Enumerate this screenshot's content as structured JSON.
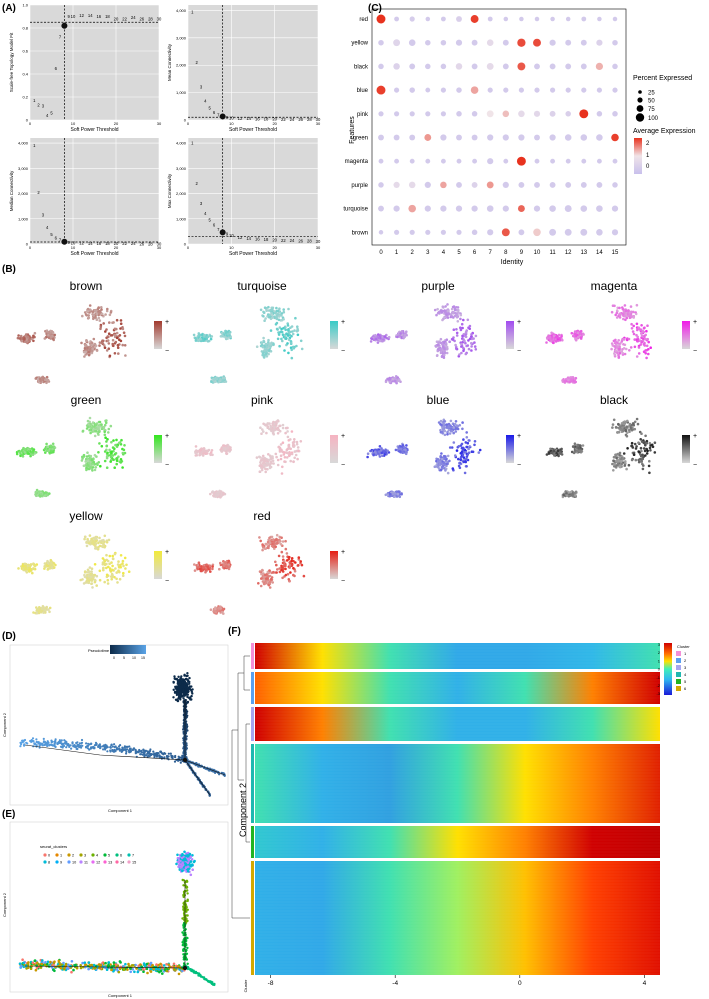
{
  "panel_labels": {
    "A": "(A)",
    "B": "(B)",
    "C": "(C)",
    "D": "(D)",
    "E": "(E)",
    "F": "(F)"
  },
  "colors": {
    "gray_bg": "#d9d9d9",
    "dot_low": "#c8c0ec",
    "dot_high": "#e8321e",
    "pseudotime_dark": "#0d2b4a",
    "pseudotime_light": "#5aa3e6",
    "heatmap_low": "#1d1de0",
    "heatmap_mid": "#32e0c4",
    "heatmap_high": "#d00000"
  },
  "panel_a": {
    "xlabel": "Soft Power Threshold",
    "ylabels": [
      "Scale-free Topology Model Fit",
      "Mean Connectivity",
      "Median Connectivity",
      "Max Connectivity"
    ],
    "powers": [
      1,
      2,
      3,
      4,
      5,
      6,
      7,
      8,
      9,
      10,
      12,
      14,
      16,
      18,
      20,
      22,
      24,
      26,
      28,
      30
    ],
    "chart_data": [
      {
        "type": "scatter",
        "title": "",
        "ylabel": "Scale-free Topology Model Fit",
        "xlabel": "Soft Power Threshold",
        "x": [
          1,
          2,
          3,
          4,
          5,
          6,
          7,
          8,
          9,
          10,
          12,
          14,
          16,
          18,
          20,
          22,
          24,
          26,
          28,
          30
        ],
        "y": [
          0.17,
          0.13,
          0.12,
          0.04,
          0.06,
          0.45,
          0.72,
          0.82,
          0.9,
          0.9,
          0.91,
          0.91,
          0.9,
          0.9,
          0.88,
          0.88,
          0.89,
          0.88,
          0.88,
          0.88
        ],
        "xlim": [
          0,
          30
        ],
        "ylim": [
          0,
          1.0
        ],
        "yticks": [
          "0",
          "0.2",
          "0.4",
          "0.6",
          "0.8",
          "1.0"
        ],
        "xticks": [
          "0",
          "10",
          "20",
          "30"
        ],
        "hline": 0.85,
        "vline": 8,
        "highlight_x": 8
      },
      {
        "type": "scatter",
        "title": "",
        "ylabel": "Mean Connectivity",
        "xlabel": "Soft Power Threshold",
        "x": [
          1,
          2,
          3,
          4,
          5,
          6,
          7,
          8,
          9,
          10,
          12,
          14,
          16,
          18,
          20,
          22,
          24,
          26,
          28,
          30
        ],
        "y": [
          3950,
          2100,
          1200,
          700,
          430,
          280,
          190,
          130,
          100,
          80,
          60,
          50,
          40,
          35,
          30,
          25,
          22,
          20,
          18,
          16
        ],
        "xlim": [
          0,
          30
        ],
        "ylim": [
          0,
          4200
        ],
        "yticks": [
          "0",
          "1,000",
          "2,000",
          "3,000",
          "4,000"
        ],
        "xticks": [
          "0",
          "10",
          "20",
          "30"
        ],
        "hline": 100,
        "vline": 8,
        "highlight_x": 8
      },
      {
        "type": "scatter",
        "title": "",
        "ylabel": "Median Connectivity",
        "xlabel": "Soft Power Threshold",
        "x": [
          1,
          2,
          3,
          4,
          5,
          6,
          7,
          8,
          9,
          10,
          12,
          14,
          16,
          18,
          20,
          22,
          24,
          26,
          28,
          30
        ],
        "y": [
          3900,
          2050,
          1150,
          650,
          380,
          230,
          150,
          90,
          60,
          45,
          35,
          28,
          22,
          18,
          15,
          12,
          10,
          9,
          8,
          7
        ],
        "xlim": [
          0,
          30
        ],
        "ylim": [
          0,
          4200
        ],
        "yticks": [
          "0",
          "1,000",
          "2,000",
          "3,000",
          "4,000"
        ],
        "xticks": [
          "0",
          "10",
          "20",
          "30"
        ],
        "hline": 80,
        "vline": 8,
        "highlight_x": 8
      },
      {
        "type": "scatter",
        "title": "",
        "ylabel": "Max Connectivity",
        "xlabel": "Soft Power Threshold",
        "x": [
          1,
          2,
          3,
          4,
          5,
          6,
          7,
          8,
          9,
          10,
          12,
          14,
          16,
          18,
          20,
          22,
          24,
          26,
          28,
          30
        ],
        "y": [
          4000,
          2400,
          1600,
          1200,
          950,
          750,
          580,
          460,
          390,
          330,
          260,
          220,
          190,
          170,
          150,
          140,
          130,
          120,
          110,
          100
        ],
        "xlim": [
          0,
          30
        ],
        "ylim": [
          0,
          4200
        ],
        "yticks": [
          "0",
          "1,000",
          "2,000",
          "3,000",
          "4,000"
        ],
        "xticks": [
          "0",
          "10",
          "20",
          "30"
        ],
        "hline": 300,
        "vline": 8,
        "highlight_x": 8
      }
    ]
  },
  "panel_c": {
    "xlabel": "Identity",
    "ylabel": "Features",
    "legend_size_title": "Percent Expressed",
    "legend_size_labels": [
      "25",
      "50",
      "75",
      "100"
    ],
    "legend_color_title": "Average Expression",
    "legend_color_labels": [
      "2",
      "1",
      "0"
    ],
    "chart_data": {
      "type": "dotplot",
      "title": "",
      "features": [
        "red",
        "yellow",
        "black",
        "blue",
        "pink",
        "green",
        "magenta",
        "purple",
        "turquoise",
        "brown"
      ],
      "identities": [
        "0",
        "1",
        "2",
        "3",
        "4",
        "5",
        "6",
        "7",
        "8",
        "9",
        "10",
        "11",
        "12",
        "13",
        "14",
        "15"
      ],
      "avg_expression": [
        [
          2.4,
          0.0,
          0.1,
          0.0,
          0.0,
          0.2,
          2.3,
          0.0,
          0.0,
          0.0,
          0.0,
          0.0,
          0.0,
          0.0,
          0.0,
          0.0
        ],
        [
          0.0,
          0.4,
          0.0,
          0.0,
          0.0,
          0.0,
          0.0,
          0.6,
          0.0,
          2.2,
          2.2,
          0.0,
          0.0,
          0.0,
          0.3,
          0.0
        ],
        [
          0.0,
          0.3,
          0.0,
          0.0,
          0.0,
          0.5,
          0.0,
          0.6,
          0.0,
          2.1,
          0.0,
          0.0,
          0.0,
          0.0,
          1.4,
          0.0
        ],
        [
          2.3,
          0.0,
          0.0,
          0.0,
          0.0,
          0.0,
          1.5,
          0.0,
          0.0,
          0.0,
          0.0,
          0.0,
          0.0,
          0.0,
          0.0,
          0.0
        ],
        [
          0.0,
          0.0,
          0.0,
          0.0,
          0.0,
          0.0,
          0.0,
          1.0,
          1.3,
          0.6,
          0.5,
          0.3,
          0.2,
          2.4,
          0.0,
          0.0
        ],
        [
          0.0,
          0.0,
          0.0,
          1.6,
          0.0,
          0.0,
          0.0,
          0.0,
          0.0,
          0.0,
          0.0,
          0.0,
          0.0,
          0.0,
          0.0,
          2.3
        ],
        [
          0.0,
          0.0,
          0.0,
          0.0,
          0.0,
          0.0,
          0.0,
          0.0,
          0.0,
          2.4,
          0.0,
          0.0,
          0.0,
          0.0,
          0.0,
          0.0
        ],
        [
          0.0,
          0.6,
          0.6,
          0.0,
          1.5,
          0.0,
          0.3,
          1.6,
          0.0,
          0.0,
          0.0,
          0.0,
          0.0,
          0.0,
          0.0,
          0.0
        ],
        [
          0.0,
          0.0,
          1.5,
          0.0,
          0.0,
          0.0,
          0.0,
          0.0,
          0.0,
          2.0,
          0.0,
          0.0,
          0.0,
          0.0,
          0.0,
          0.0
        ],
        [
          0.0,
          0.0,
          0.0,
          0.0,
          0.0,
          0.0,
          0.0,
          0.0,
          2.1,
          0.0,
          1.2,
          0.0,
          0.0,
          0.0,
          0.0,
          0.0
        ]
      ],
      "pct_expressed": [
        [
          90,
          30,
          35,
          25,
          30,
          45,
          75,
          30,
          25,
          25,
          25,
          25,
          25,
          30,
          25,
          25
        ],
        [
          40,
          60,
          55,
          40,
          40,
          50,
          45,
          55,
          45,
          80,
          75,
          50,
          45,
          45,
          50,
          40
        ],
        [
          40,
          55,
          45,
          40,
          40,
          55,
          45,
          60,
          45,
          75,
          45,
          45,
          45,
          45,
          65,
          40
        ],
        [
          90,
          35,
          40,
          30,
          35,
          40,
          70,
          35,
          35,
          35,
          35,
          35,
          35,
          35,
          35,
          35
        ],
        [
          35,
          35,
          35,
          35,
          35,
          40,
          40,
          60,
          55,
          55,
          50,
          45,
          40,
          90,
          40,
          40
        ],
        [
          45,
          45,
          45,
          60,
          50,
          45,
          45,
          50,
          50,
          50,
          45,
          50,
          55,
          55,
          55,
          70
        ],
        [
          30,
          30,
          30,
          30,
          30,
          30,
          30,
          50,
          30,
          90,
          30,
          30,
          30,
          30,
          30,
          30
        ],
        [
          40,
          50,
          55,
          50,
          55,
          45,
          45,
          60,
          50,
          45,
          45,
          45,
          45,
          45,
          45,
          40
        ],
        [
          45,
          50,
          70,
          50,
          50,
          50,
          50,
          55,
          50,
          60,
          50,
          55,
          60,
          55,
          55,
          50
        ],
        [
          25,
          35,
          35,
          35,
          35,
          35,
          40,
          50,
          75,
          45,
          70,
          60,
          60,
          60,
          55,
          50
        ]
      ]
    }
  },
  "panel_b": {
    "modules": [
      {
        "name": "brown",
        "color": "#a23a2e"
      },
      {
        "name": "turquoise",
        "color": "#38cbc6"
      },
      {
        "name": "purple",
        "color": "#a24bf0"
      },
      {
        "name": "magenta",
        "color": "#f01be8"
      },
      {
        "name": "green",
        "color": "#32e61e"
      },
      {
        "name": "pink",
        "color": "#f6b3c1"
      },
      {
        "name": "blue",
        "color": "#1a1ae8"
      },
      {
        "name": "black",
        "color": "#111111"
      },
      {
        "name": "yellow",
        "color": "#f2ea3a"
      },
      {
        "name": "red",
        "color": "#e61e14"
      }
    ],
    "scale_plus": "+",
    "scale_minus": "−"
  },
  "panel_d": {
    "xlabel": "Component 1",
    "ylabel": "Component 2",
    "legend_title": "Pseudotime",
    "legend_ticks": [
      "0",
      "5",
      "10",
      "15"
    ]
  },
  "panel_e": {
    "xlabel": "Component 1",
    "ylabel": "Component 2",
    "legend_title": "seurat_clusters",
    "clusters": [
      "0",
      "1",
      "2",
      "3",
      "4",
      "5",
      "6",
      "7",
      "8",
      "9",
      "10",
      "11",
      "12",
      "13",
      "14",
      "15"
    ]
  },
  "panel_f": {
    "xlabel": "Component 2",
    "xticks": [
      "-8",
      "-4",
      "0",
      "4"
    ],
    "colorbar_ticks": [
      "3",
      "2",
      "1",
      "0",
      "-1",
      "-2",
      "-3"
    ],
    "legend_title": "Cluster",
    "cluster_labels": [
      "1",
      "2",
      "3",
      "4",
      "5",
      "6"
    ],
    "cluster_colors": [
      "#f48fd8",
      "#5aa0f0",
      "#a6a6f0",
      "#1fb8b0",
      "#22b422",
      "#d4a800"
    ],
    "left_annotation": "Cluster"
  }
}
